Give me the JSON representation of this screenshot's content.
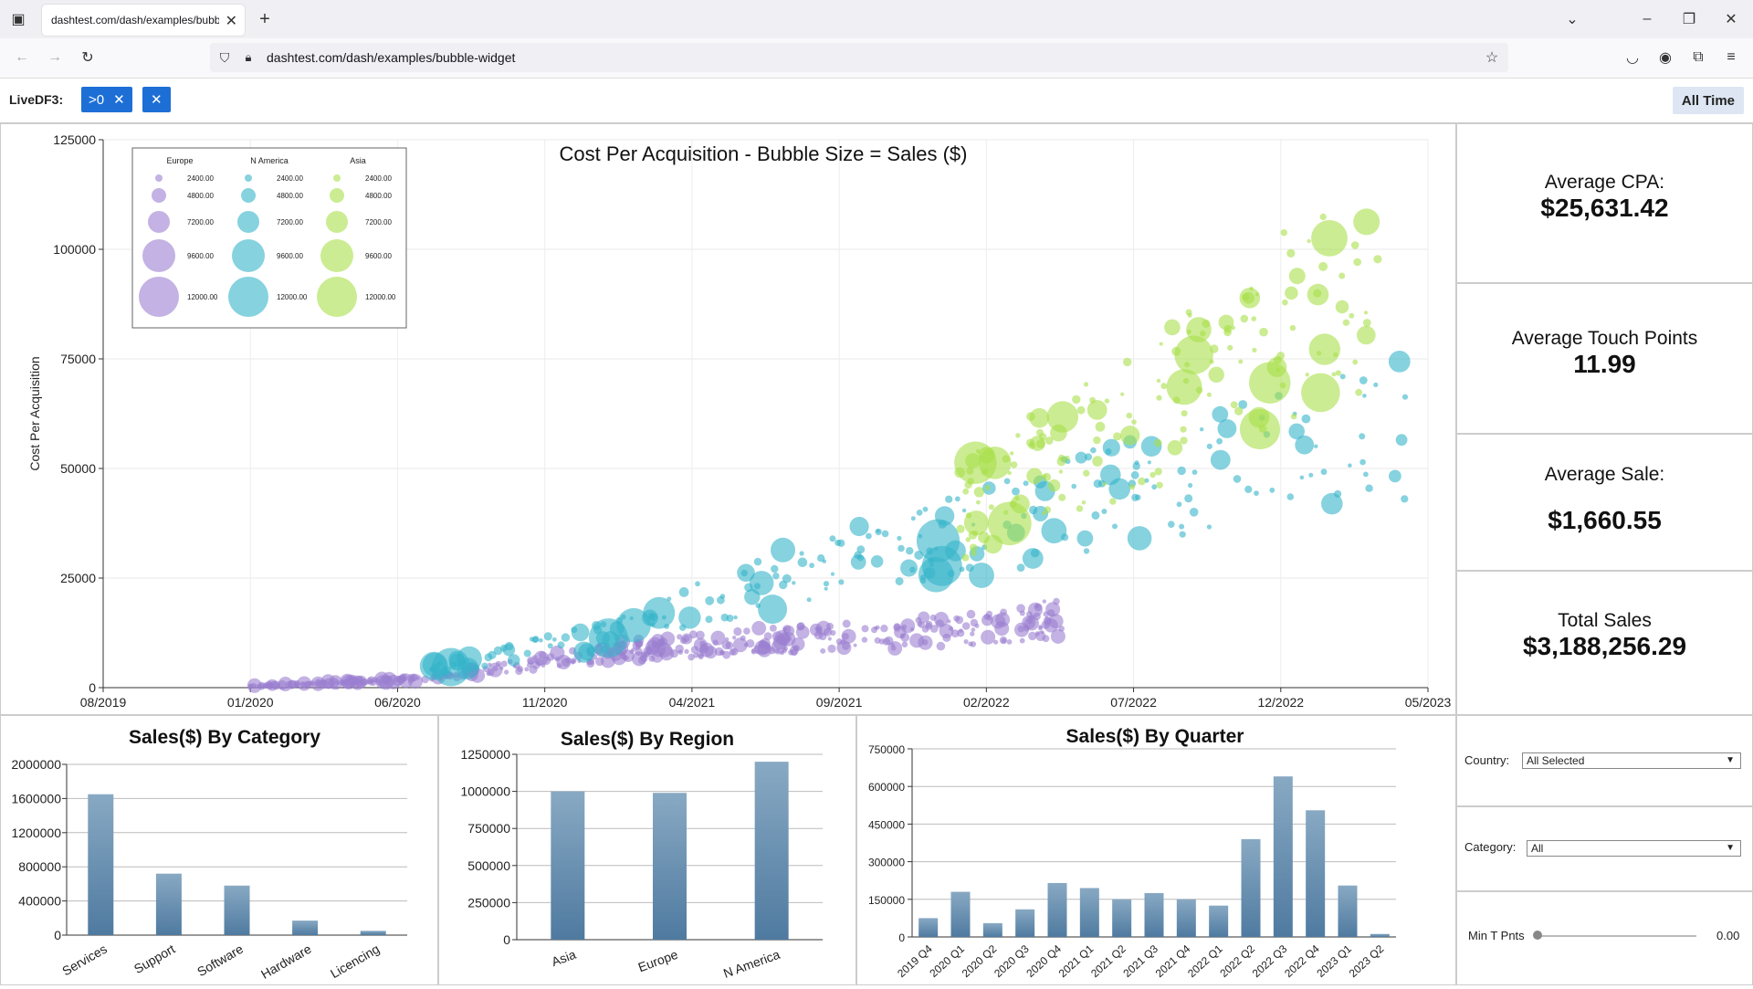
{
  "browser": {
    "tab_title": "dashtest.com/dash/examples/bubble-widget",
    "url": "dashtest.com/dash/examples/bubble-widget"
  },
  "filters": {
    "label": "LiveDF3:",
    "chip_label": ">0",
    "time_button": "All Time"
  },
  "kpis": [
    {
      "label": "Average CPA:",
      "value": "$25,631.42"
    },
    {
      "label": "Average Touch Points",
      "value": "11.99"
    },
    {
      "label": "Average Sale:",
      "value": "$1,660.55"
    },
    {
      "label": "Total Sales",
      "value": "$3,188,256.29"
    }
  ],
  "controls": {
    "country_label": "Country:",
    "country_value": "All Selected",
    "category_label": "Category:",
    "category_value": "All",
    "min_tp_label": "Min T Pnts",
    "min_tp_value": "0.00"
  },
  "chart_data": [
    {
      "type": "scatter",
      "title": "Cost Per Acquisition - Bubble Size = Sales ($)",
      "ylabel": "Cost Per Acquisition",
      "xlabel": "",
      "x_ticks": [
        "08/2019",
        "01/2020",
        "06/2020",
        "11/2020",
        "04/2021",
        "09/2021",
        "02/2022",
        "07/2022",
        "12/2022",
        "05/2023"
      ],
      "y_ticks": [
        "0",
        "25000",
        "50000",
        "75000",
        "100000",
        "125000"
      ],
      "ylim": [
        0,
        125000
      ],
      "legend_position": "top-left",
      "legend": {
        "groups": [
          "Europe",
          "N America",
          "Asia"
        ],
        "sizes": [
          "2400.00",
          "4800.00",
          "7200.00",
          "9600.00",
          "12000.00"
        ]
      },
      "series": [
        {
          "name": "Europe",
          "color": "#9b7fd1",
          "trend": [
            [
              2020.0,
              400
            ],
            [
              2020.5,
              2000
            ],
            [
              2021.0,
              8000
            ],
            [
              2021.5,
              11000
            ],
            [
              2022.0,
              13000
            ],
            [
              2022.3,
              16000
            ]
          ]
        },
        {
          "name": "N America",
          "color": "#35b4c9",
          "trend": [
            [
              2020.5,
              4000
            ],
            [
              2021.0,
              12000
            ],
            [
              2021.5,
              25000
            ],
            [
              2022.0,
              34000
            ],
            [
              2022.5,
              45000
            ],
            [
              2023.3,
              60000
            ]
          ]
        },
        {
          "name": "Asia",
          "color": "#a8df4a",
          "trend": [
            [
              2022.0,
              40000
            ],
            [
              2022.5,
              60000
            ],
            [
              2022.8,
              75000
            ],
            [
              2023.2,
              95000
            ]
          ]
        }
      ],
      "grid": true
    },
    {
      "type": "bar",
      "title": "Sales($) By Category",
      "categories": [
        "Services",
        "Support",
        "Software",
        "Hardware",
        "Licencing"
      ],
      "values": [
        1650000,
        720000,
        580000,
        170000,
        50000
      ],
      "y_ticks": [
        "0",
        "400000",
        "800000",
        "1200000",
        "1600000",
        "2000000"
      ],
      "ylim": [
        0,
        2000000
      ]
    },
    {
      "type": "bar",
      "title": "Sales($) By Region",
      "categories": [
        "Asia",
        "Europe",
        "N America"
      ],
      "values": [
        1000000,
        990000,
        1200000
      ],
      "y_ticks": [
        "0",
        "250000",
        "500000",
        "750000",
        "1000000",
        "1250000"
      ],
      "ylim": [
        0,
        1250000
      ]
    },
    {
      "type": "bar",
      "title": "Sales($) By Quarter",
      "categories": [
        "2019 Q4",
        "2020 Q1",
        "2020 Q2",
        "2020 Q3",
        "2020 Q4",
        "2021 Q1",
        "2021 Q2",
        "2021 Q3",
        "2021 Q4",
        "2022 Q1",
        "2022 Q2",
        "2022 Q3",
        "2022 Q4",
        "2023 Q1",
        "2023 Q2"
      ],
      "values": [
        75000,
        180000,
        55000,
        110000,
        215000,
        195000,
        150000,
        175000,
        150000,
        125000,
        390000,
        640000,
        505000,
        205000,
        12000
      ],
      "y_ticks": [
        "0",
        "150000",
        "300000",
        "450000",
        "600000",
        "750000"
      ],
      "ylim": [
        0,
        750000
      ]
    }
  ]
}
